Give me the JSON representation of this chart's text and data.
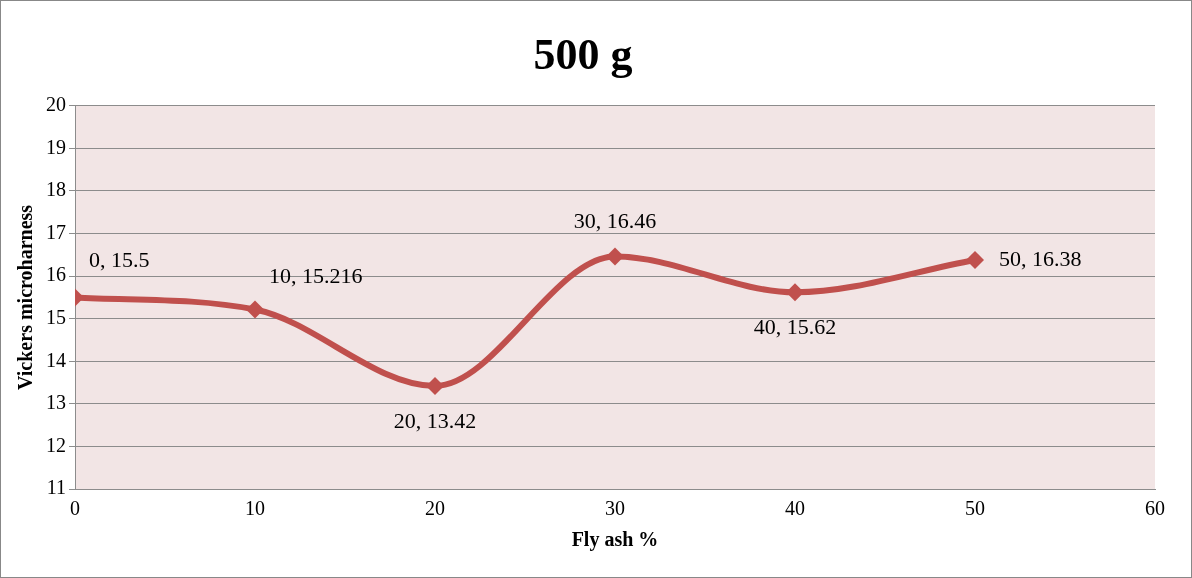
{
  "chart_data": {
    "type": "line",
    "title": "500 g",
    "xlabel": "Fly ash %",
    "ylabel": "Vickers microharness",
    "x": [
      0,
      10,
      20,
      30,
      40,
      50
    ],
    "series": [
      {
        "color": "#c0504d",
        "values": [
          15.5,
          15.216,
          13.42,
          16.46,
          15.62,
          16.38
        ],
        "value_labels": [
          "0, 15.5",
          "10, 15.216",
          "20, 13.42",
          "30, 16.46",
          "40, 15.62",
          "50, 16.38"
        ]
      }
    ],
    "xlim": [
      0,
      60
    ],
    "xticks": [
      0,
      10,
      20,
      30,
      40,
      50,
      60
    ],
    "ylim": [
      11,
      20
    ],
    "yticks": [
      11,
      12,
      13,
      14,
      15,
      16,
      17,
      18,
      19,
      20
    ],
    "grid": "y",
    "legend": false,
    "marker": "diamond",
    "line_style": "solid"
  }
}
